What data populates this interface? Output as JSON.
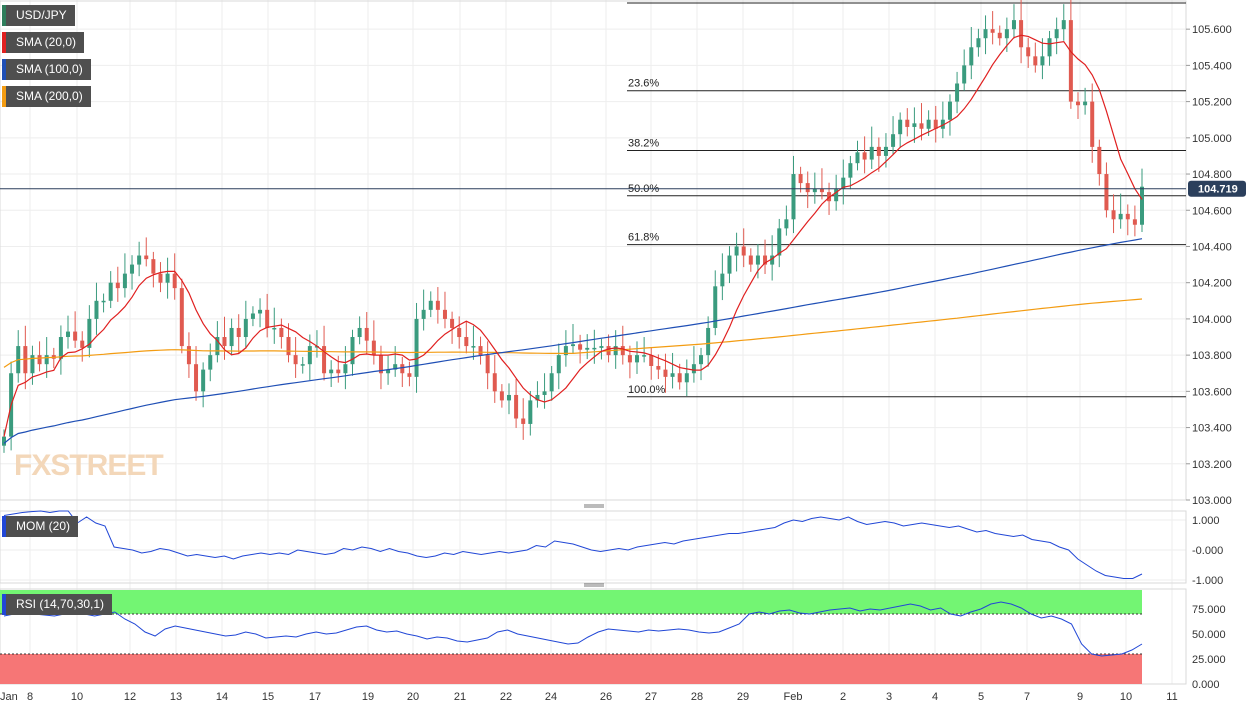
{
  "symbol": "USD/JPY",
  "watermark": "FXSTREET",
  "indicators": {
    "sma20": {
      "label": "SMA (20,0)",
      "color": "#e02020"
    },
    "sma100": {
      "label": "SMA (100,0)",
      "color": "#1f4fb5"
    },
    "sma200": {
      "label": "SMA (200,0)",
      "color": "#f39c12"
    },
    "mom": {
      "label": "MOM (20)",
      "color": "#2147d6"
    },
    "rsi": {
      "label": "RSI (14,70,30,1)",
      "color": "#2147d6",
      "overbought_color": "#73f573",
      "oversold_color": "#f67676"
    }
  },
  "chart_data": [
    {
      "type": "candlestick",
      "panel": "price",
      "ylim": [
        103.0,
        105.75
      ],
      "y_ticks": [
        "105.600",
        "105.400",
        "105.200",
        "105.000",
        "104.800",
        "104.600",
        "104.400",
        "104.200",
        "104.000",
        "103.800",
        "103.600",
        "103.400",
        "103.200",
        "103.000"
      ],
      "x_ticks": [
        "Jan",
        "8",
        "10",
        "12",
        "13",
        "14",
        "15",
        "17",
        "19",
        "20",
        "21",
        "22",
        "24",
        "26",
        "27",
        "28",
        "29",
        "Feb",
        "2",
        "3",
        "4",
        "5",
        "7",
        "9",
        "10",
        "11"
      ],
      "last_price": "104.719",
      "last_price_color": "#2b3f5c",
      "up_color": "#3a9b7e",
      "down_color": "#e05a50",
      "fibonacci": [
        {
          "label": "23.6%",
          "value": 105.26
        },
        {
          "label": "38.2%",
          "value": 104.93
        },
        {
          "label": "50.0%",
          "value": 104.68
        },
        {
          "label": "61.8%",
          "value": 104.41
        },
        {
          "label": "100.0%",
          "value": 103.57
        }
      ],
      "fib_top": 105.75,
      "closes": [
        103.35,
        103.7,
        103.85,
        103.7,
        103.8,
        103.75,
        103.8,
        103.78,
        103.9,
        103.93,
        103.88,
        103.84,
        104.0,
        104.1,
        104.1,
        104.2,
        104.17,
        104.25,
        104.3,
        104.35,
        104.33,
        104.25,
        104.2,
        104.25,
        104.17,
        103.85,
        103.75,
        103.6,
        103.72,
        103.8,
        103.9,
        103.85,
        103.95,
        103.9,
        104.0,
        104.03,
        104.05,
        103.95,
        103.95,
        103.9,
        103.8,
        103.75,
        103.75,
        103.85,
        103.85,
        103.7,
        103.72,
        103.7,
        103.75,
        103.9,
        103.95,
        103.88,
        103.8,
        103.7,
        103.72,
        103.75,
        103.7,
        103.68,
        104.0,
        104.05,
        104.1,
        104.05,
        104.0,
        103.95,
        103.9,
        103.85,
        103.85,
        103.8,
        103.7,
        103.6,
        103.55,
        103.58,
        103.45,
        103.42,
        103.55,
        103.58,
        103.6,
        103.7,
        103.8,
        103.85,
        103.86,
        103.83,
        103.84,
        103.84,
        103.85,
        103.8,
        103.85,
        103.8,
        103.76,
        103.8,
        103.8,
        103.74,
        103.72,
        103.68,
        103.7,
        103.65,
        103.7,
        103.75,
        103.8,
        103.95,
        104.18,
        104.25,
        104.35,
        104.4,
        104.35,
        104.3,
        104.35,
        104.3,
        104.35,
        104.5,
        104.55,
        104.8,
        104.75,
        104.7,
        104.72,
        104.7,
        104.65,
        104.72,
        104.78,
        104.86,
        104.92,
        104.88,
        104.95,
        104.9,
        104.95,
        105.02,
        105.1,
        105.06,
        105.08,
        105.05,
        105.1,
        105.05,
        105.1,
        105.2,
        105.3,
        105.4,
        105.5,
        105.55,
        105.6,
        105.58,
        105.55,
        105.6,
        105.65,
        105.5,
        105.45,
        105.4,
        105.45,
        105.55,
        105.6,
        105.65,
        105.2,
        105.18,
        105.2,
        104.95,
        104.8,
        104.6,
        104.55,
        104.58,
        104.55,
        104.52,
        104.73
      ]
    },
    {
      "type": "line",
      "panel": "momentum",
      "ylim": [
        -1.1,
        1.3
      ],
      "y_ticks": [
        "1.000",
        "-0.000",
        "-1.000"
      ],
      "values": [
        1.15,
        1.2,
        1.25,
        1.28,
        1.3,
        1.25,
        1.3,
        1.3,
        0.9,
        1.1,
        0.9,
        0.8,
        0.1,
        0.05,
        0.0,
        -0.1,
        -0.05,
        0.05,
        0.0,
        -0.1,
        -0.2,
        -0.15,
        -0.2,
        -0.25,
        -0.2,
        -0.3,
        -0.2,
        -0.15,
        -0.1,
        -0.15,
        -0.1,
        -0.15,
        0.0,
        -0.05,
        -0.1,
        -0.15,
        -0.1,
        0.05,
        0.0,
        0.1,
        0.05,
        -0.05,
        0.05,
        -0.05,
        -0.1,
        -0.2,
        -0.25,
        -0.2,
        -0.1,
        -0.15,
        -0.05,
        -0.1,
        -0.15,
        -0.1,
        -0.05,
        -0.1,
        -0.05,
        0.0,
        0.15,
        0.1,
        0.3,
        0.25,
        0.2,
        0.1,
        0.0,
        -0.05,
        0.0,
        0.05,
        0.0,
        0.1,
        0.15,
        0.2,
        0.25,
        0.2,
        0.3,
        0.35,
        0.4,
        0.45,
        0.5,
        0.55,
        0.55,
        0.6,
        0.65,
        0.7,
        0.75,
        0.9,
        1.0,
        0.95,
        1.05,
        1.1,
        1.05,
        1.0,
        1.1,
        0.95,
        0.85,
        0.9,
        0.95,
        0.9,
        0.8,
        0.85,
        0.9,
        0.85,
        0.8,
        0.75,
        0.8,
        0.7,
        0.6,
        0.65,
        0.55,
        0.5,
        0.45,
        0.5,
        0.35,
        0.3,
        0.25,
        0.1,
        0.0,
        -0.3,
        -0.5,
        -0.7,
        -0.85,
        -0.9,
        -0.95,
        -0.95,
        -0.8
      ]
    },
    {
      "type": "line",
      "panel": "rsi",
      "ylim": [
        0,
        95
      ],
      "y_ticks": [
        "75.000",
        "50.000",
        "25.000",
        "0.000"
      ],
      "overbought": 70,
      "oversold": 30,
      "values": [
        68,
        70,
        72,
        70,
        69,
        68,
        70,
        72,
        70,
        68,
        70,
        72,
        65,
        60,
        52,
        48,
        55,
        58,
        56,
        54,
        52,
        50,
        48,
        49,
        52,
        50,
        46,
        47,
        48,
        47,
        50,
        52,
        50,
        51,
        54,
        57,
        58,
        54,
        52,
        53,
        50,
        48,
        45,
        47,
        46,
        43,
        42,
        44,
        46,
        52,
        54,
        50,
        48,
        46,
        44,
        42,
        40,
        41,
        47,
        52,
        55,
        54,
        53,
        52,
        54,
        53,
        54,
        55,
        54,
        52,
        51,
        52,
        56,
        60,
        70,
        72,
        70,
        73,
        74,
        71,
        70,
        72,
        74,
        75,
        76,
        73,
        75,
        74,
        76,
        78,
        80,
        78,
        74,
        76,
        70,
        68,
        72,
        75,
        80,
        82,
        80,
        76,
        70,
        66,
        68,
        65,
        60,
        40,
        30,
        28,
        29,
        30,
        34,
        40
      ]
    }
  ]
}
